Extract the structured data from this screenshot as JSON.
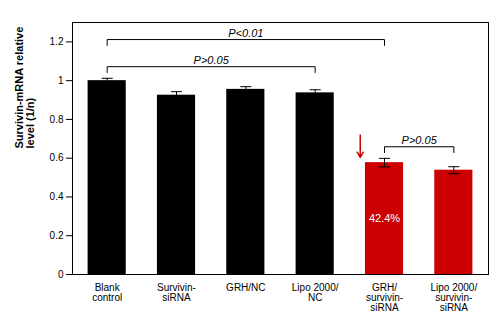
{
  "chart_data": {
    "type": "bar",
    "categories": [
      "Blank\ncontrol",
      "Survivin-\nsiRNA",
      "GRH/NC",
      "Lipo 2000/\nNC",
      "GRH/\nsurvivin-\nsiRNA",
      "Lipo 2000/\nsurvivin-\nsiRNA"
    ],
    "values": [
      1.0,
      0.925,
      0.955,
      0.937,
      0.577,
      0.538
    ],
    "errors": [
      0.012,
      0.018,
      0.014,
      0.016,
      0.022,
      0.018
    ],
    "colors": [
      "#000000",
      "#000000",
      "#000000",
      "#000000",
      "#cc0000",
      "#cc0000"
    ],
    "ylabel": "Survivin-mRNA relative\nlevel (1/n)",
    "ylim": [
      0,
      1.3
    ],
    "yticks": [
      0,
      0.2,
      0.4,
      0.6,
      0.8,
      1.0,
      1.2
    ],
    "annotations": [
      {
        "text": "42.4%",
        "category": "GRH/\nsurvivin-\nsiRNA",
        "color": "#cc0000"
      }
    ],
    "brackets": [
      {
        "label": "P>0.05",
        "from": "Blank\ncontrol",
        "to": "Lipo 2000/\nNC"
      },
      {
        "label": "P<0.01",
        "from": "Blank\ncontrol",
        "to": "GRH/\nsurvivin-\nsiRNA"
      },
      {
        "label": "P>0.05",
        "from": "GRH/\nsurvivin-\nsiRNA",
        "to": "Lipo 2000/\nsurvivin-\nsiRNA"
      }
    ]
  }
}
